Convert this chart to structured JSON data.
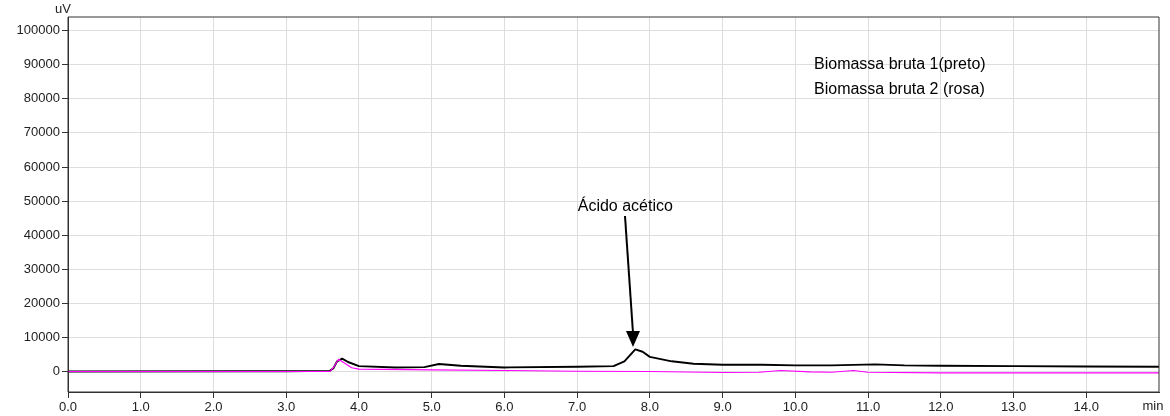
{
  "chart_data": {
    "type": "line",
    "xlabel": "min",
    "ylabel": "uV",
    "xlim": [
      0,
      15
    ],
    "ylim": [
      -6000,
      104000
    ],
    "xticks": [
      {
        "value": 0,
        "label": "0.0"
      },
      {
        "value": 1,
        "label": "1.0"
      },
      {
        "value": 2,
        "label": "2.0"
      },
      {
        "value": 3,
        "label": "3.0"
      },
      {
        "value": 4,
        "label": "4.0"
      },
      {
        "value": 5,
        "label": "5.0"
      },
      {
        "value": 6,
        "label": "6.0"
      },
      {
        "value": 7,
        "label": "7.0"
      },
      {
        "value": 8,
        "label": "8.0"
      },
      {
        "value": 9,
        "label": "9.0"
      },
      {
        "value": 10,
        "label": "10.0"
      },
      {
        "value": 11,
        "label": "11.0"
      },
      {
        "value": 12,
        "label": "12.0"
      },
      {
        "value": 13,
        "label": "13.0"
      },
      {
        "value": 14,
        "label": "14.0"
      }
    ],
    "yticks": [
      0,
      10000,
      20000,
      30000,
      40000,
      50000,
      60000,
      70000,
      80000,
      90000,
      100000
    ],
    "grid": true,
    "legend": false,
    "marker": "none",
    "line_style": "solid",
    "series": [
      {
        "color": "#000000",
        "x": [
          0,
          3.0,
          3.6,
          3.65,
          3.7,
          3.77,
          3.85,
          4.0,
          4.5,
          4.9,
          5.1,
          5.4,
          6.0,
          7.0,
          7.5,
          7.65,
          7.8,
          7.9,
          8.0,
          8.3,
          8.6,
          9.0,
          9.5,
          10.0,
          10.5,
          11.1,
          11.5,
          12.0,
          13.0,
          14.0,
          15.0
        ],
        "values": [
          0,
          100,
          200,
          1000,
          3000,
          3800,
          2800,
          1600,
          1200,
          1300,
          2200,
          1700,
          1200,
          1400,
          1600,
          3000,
          6500,
          5800,
          4300,
          3000,
          2300,
          2000,
          2000,
          1800,
          1800,
          2100,
          1800,
          1700,
          1600,
          1500,
          1400
        ]
      },
      {
        "color": "#ff00ff",
        "x": [
          0,
          3.0,
          3.6,
          3.65,
          3.72,
          3.8,
          3.9,
          4.0,
          5.0,
          6.0,
          7.0,
          8.0,
          9.0,
          9.5,
          9.8,
          10.2,
          10.5,
          10.8,
          11.0,
          12.0,
          13.0,
          15.0
        ],
        "values": [
          0,
          0,
          0,
          1200,
          3600,
          2500,
          1100,
          700,
          500,
          300,
          100,
          0,
          -300,
          -200,
          300,
          -100,
          -200,
          300,
          -200,
          -400,
          -400,
          -400
        ]
      }
    ],
    "annotations": [
      "Biomassa bruta 1(preto)",
      "Biomassa bruta 2 (rosa)",
      "Ácido acético"
    ]
  }
}
